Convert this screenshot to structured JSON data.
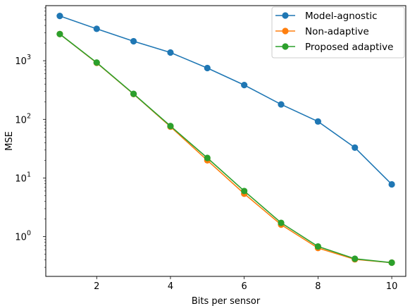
{
  "chart_data": {
    "type": "line",
    "title": "",
    "xlabel": "Bits per sensor",
    "ylabel": "MSE",
    "yscale": "log",
    "xlim": [
      0.62,
      10.38
    ],
    "ylim": [
      0.21,
      8700
    ],
    "x_ticks": [
      2,
      4,
      6,
      8,
      10
    ],
    "x_tick_labels": [
      "2",
      "4",
      "6",
      "8",
      "10"
    ],
    "y_ticks": [
      1,
      10,
      100,
      1000
    ],
    "y_tick_labels": [
      {
        "base": "10",
        "exp": "0"
      },
      {
        "base": "10",
        "exp": "1"
      },
      {
        "base": "10",
        "exp": "2"
      },
      {
        "base": "10",
        "exp": "3"
      }
    ],
    "grid": false,
    "legend_position": "top-right",
    "x": [
      1,
      2,
      3,
      4,
      5,
      6,
      7,
      8,
      9,
      10
    ],
    "series": [
      {
        "name": "Model-agnostic",
        "color": "#1f77b4",
        "values": [
          5800,
          3500,
          2150,
          1380,
          750,
          385,
          180,
          92,
          33,
          7.8
        ]
      },
      {
        "name": "Non-adaptive",
        "color": "#ff7f0e",
        "values": [
          2850,
          920,
          270,
          75,
          20,
          5.4,
          1.6,
          0.64,
          0.41,
          0.36
        ]
      },
      {
        "name": "Proposed adaptive",
        "color": "#2ca02c",
        "values": [
          2850,
          930,
          272,
          77,
          22,
          6.0,
          1.72,
          0.68,
          0.42,
          0.36
        ]
      }
    ]
  }
}
